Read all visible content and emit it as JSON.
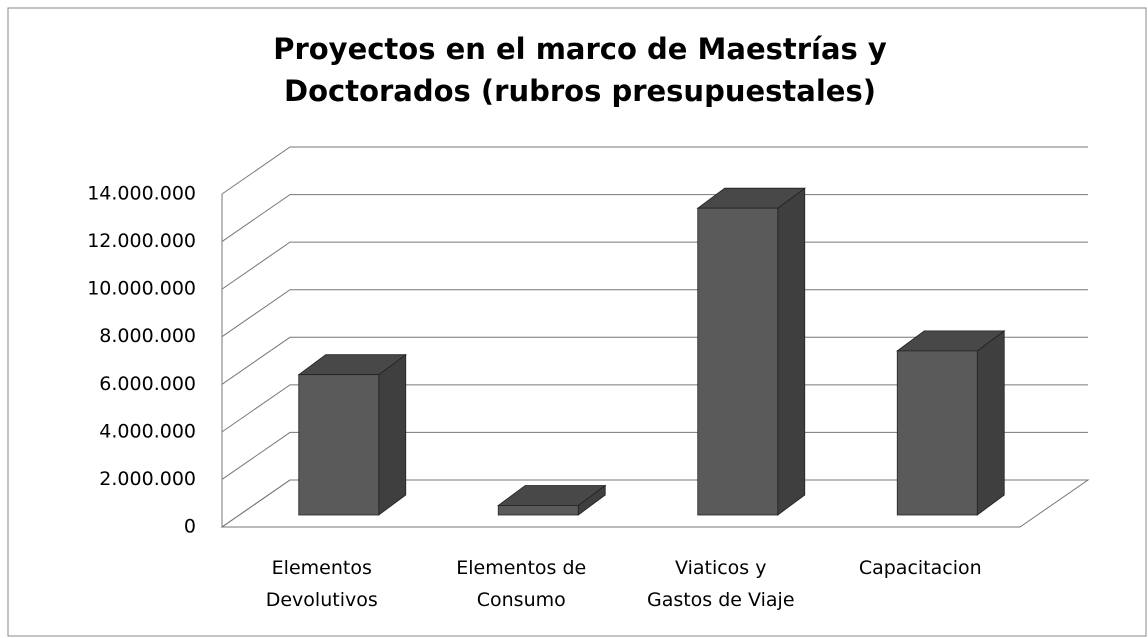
{
  "chart_data": {
    "type": "bar3d",
    "title": "Proyectos en el marco de Maestrías y Doctorados (rubros presupuestales)",
    "categories": [
      "Elementos Devolutivos",
      "Elementos de Consumo",
      "Viaticos y Gastos de Viaje",
      "Capacitacion"
    ],
    "values": [
      5900000,
      400000,
      12900000,
      6900000
    ],
    "color": "#5a5a5a",
    "ylim": [
      0,
      14000000
    ],
    "yticks": [
      0,
      {
        "value": 2000000,
        "label": "2.000.000"
      },
      {
        "value": 4000000,
        "label": "4.000.000"
      },
      {
        "value": 6000000,
        "label": "6.000.000"
      },
      {
        "value": 8000000,
        "label": "8.000.000"
      },
      {
        "value": 10000000,
        "label": "10.000.000"
      },
      {
        "value": 12000000,
        "label": "12.000.000"
      },
      {
        "value": 14000000,
        "label": "14.000.000"
      }
    ],
    "grid": true
  }
}
